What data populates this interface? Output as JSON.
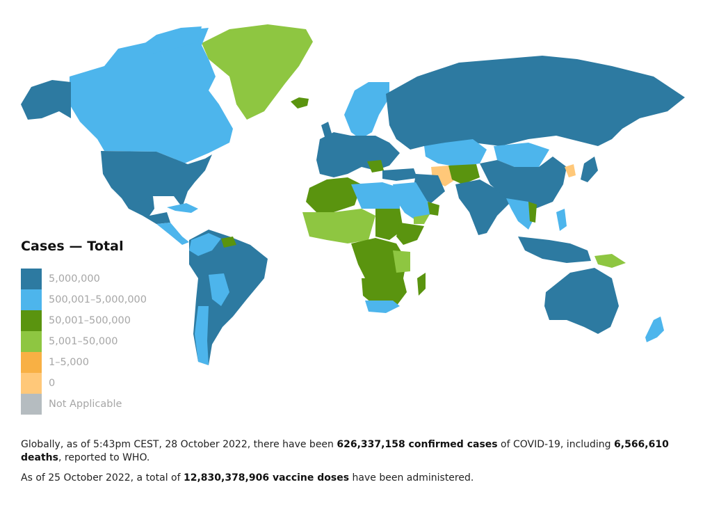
{
  "legend": {
    "title": "Cases — Total",
    "items": [
      {
        "label": "5,000,000",
        "color": "#2d7aa1"
      },
      {
        "label": "500,001–5,000,000",
        "color": "#4db5ec"
      },
      {
        "label": "50,001–500,000",
        "color": "#5a940f"
      },
      {
        "label": "5,001–50,000",
        "color": "#8ec641"
      },
      {
        "label": "1–5,000",
        "color": "#f8b044"
      },
      {
        "label": "0",
        "color": "#ffc879"
      },
      {
        "label": "Not Applicable",
        "color": "#b5bcc0"
      }
    ]
  },
  "summary": {
    "p1_prefix": "Globally, as of 5:43pm CEST, 28 October 2022, there have been ",
    "p1_cases": "626,337,158 confirmed cases",
    "p1_mid": " of COVID-19, including ",
    "p1_deaths": "6,566,610 deaths",
    "p1_suffix": ", reported to WHO.",
    "p2_prefix": "As of 25 October 2022, a total of ",
    "p2_doses": "12,830,378,906 vaccine doses",
    "p2_suffix": " have been administered."
  }
}
